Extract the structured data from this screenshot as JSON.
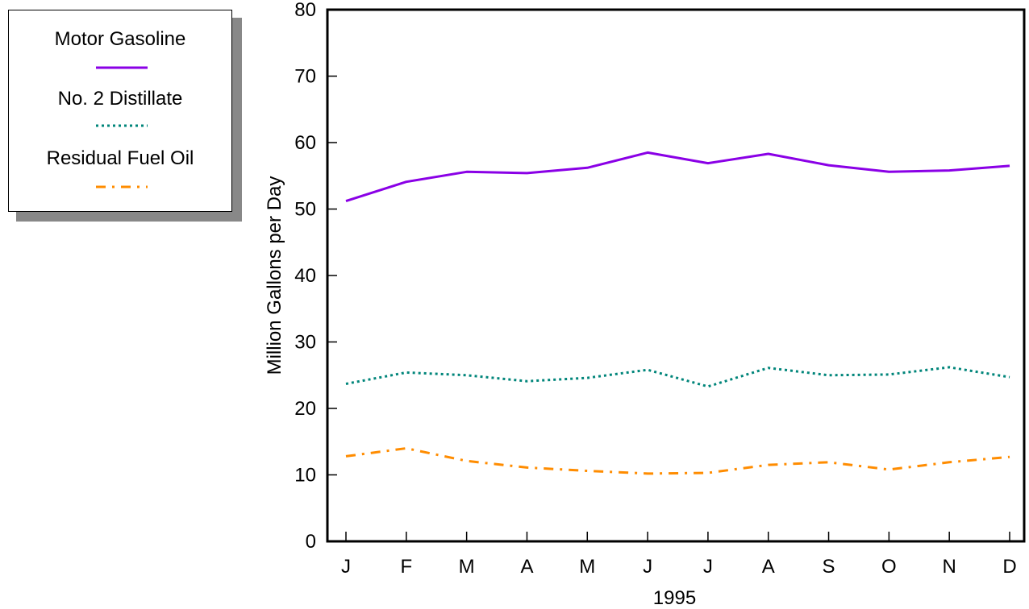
{
  "chart_data": {
    "type": "line",
    "xlabel": "1995",
    "ylabel": "Million Gallons per Day",
    "ylim": [
      0,
      80
    ],
    "yticks": [
      0,
      10,
      20,
      30,
      40,
      50,
      60,
      70,
      80
    ],
    "categories": [
      "J",
      "F",
      "M",
      "A",
      "M",
      "J",
      "J",
      "A",
      "S",
      "O",
      "N",
      "D"
    ],
    "grid": false,
    "legend_position": "top-left outside",
    "series": [
      {
        "name": "Motor Gasoline",
        "color": "#8a00e6",
        "style": "solid",
        "values": [
          51.2,
          54.1,
          55.6,
          55.4,
          56.2,
          58.5,
          56.9,
          58.3,
          56.6,
          55.6,
          55.8,
          56.5
        ]
      },
      {
        "name": "No. 2 Distillate",
        "color": "#00857a",
        "style": "dotted",
        "values": [
          23.7,
          25.4,
          25.0,
          24.1,
          24.6,
          25.8,
          23.3,
          26.1,
          25.0,
          25.1,
          26.2,
          24.7
        ]
      },
      {
        "name": "Residual Fuel Oil",
        "color": "#ff8c00",
        "style": "dashdot",
        "values": [
          12.8,
          14.0,
          12.1,
          11.1,
          10.6,
          10.2,
          10.3,
          11.5,
          11.9,
          10.8,
          11.9,
          12.7
        ]
      }
    ]
  }
}
